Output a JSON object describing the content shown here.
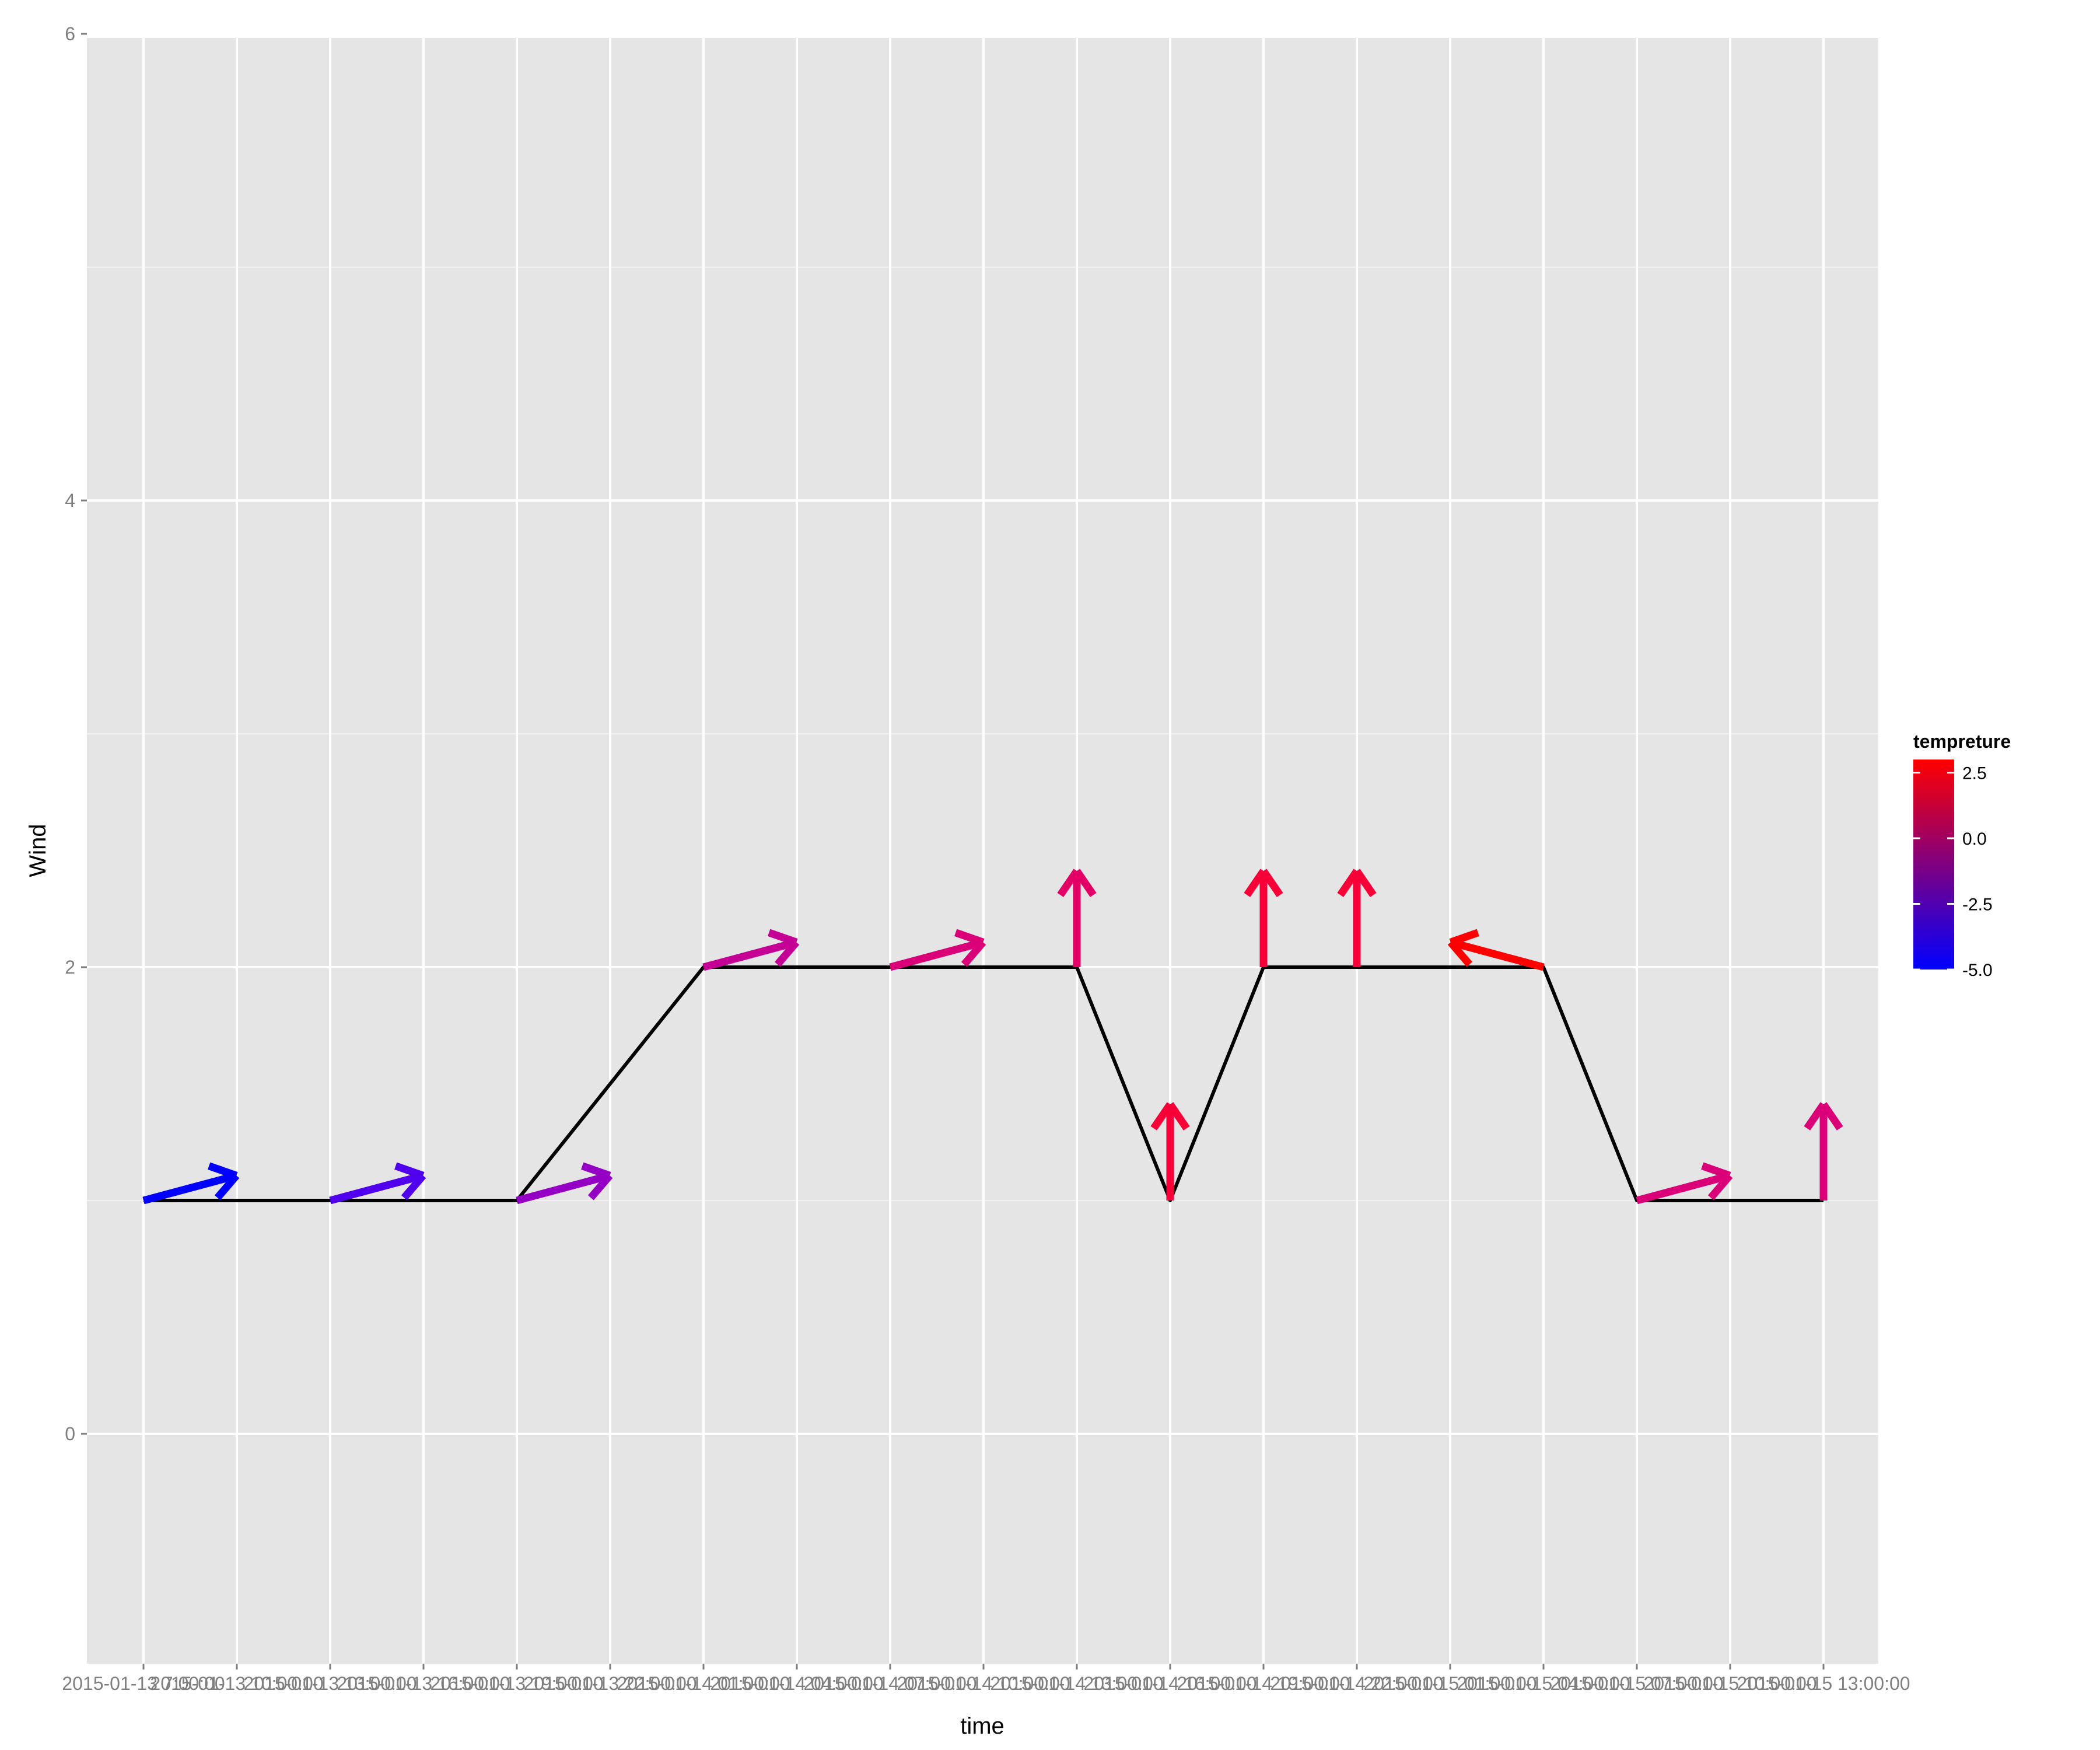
{
  "chart_data": {
    "type": "line",
    "title": "",
    "xlabel": "time",
    "ylabel": "Wind",
    "ylim": [
      -1.25,
      6
    ],
    "y_ticks": [
      "0",
      "2",
      "4",
      "6"
    ],
    "grid": true,
    "legend_placement": "right",
    "x_tick_labels": [
      "2015-01-13 7:00:00",
      "2015-01-13 10:00:00",
      "2015-01-13 13:00:00",
      "2015-01-13 16:00:00",
      "2015-01-13 19:00:00",
      "2015-01-13 22:00:00",
      "2015-01-14 01:00:00",
      "2015-01-14 04:00:00",
      "2015-01-14 07:00:00",
      "2015-01-14 10:00:00",
      "2015-01-14 13:00:00",
      "2015-01-14 16:00:00",
      "2015-01-14 19:00:00",
      "2015-01-14 22:00:00",
      "2015-01-15 01:00:00",
      "2015-01-15 04:00:00",
      "2015-01-15 07:00:00",
      "2015-01-15 10:00:00",
      "2015-01-15 13:00:00"
    ],
    "series": [
      {
        "values": [
          1,
          1,
          1,
          1,
          1,
          1.5,
          2,
          2,
          2,
          2,
          2,
          1,
          2,
          2,
          2,
          2,
          1,
          1,
          1
        ]
      }
    ],
    "wind_arrows": [
      {
        "index": 0,
        "wind": 1,
        "temp": -5.0,
        "direction_deg": 75
      },
      {
        "index": 2,
        "wind": 1,
        "temp": -4.0,
        "direction_deg": 75
      },
      {
        "index": 4,
        "wind": 1,
        "temp": -2.0,
        "direction_deg": 75
      },
      {
        "index": 6,
        "wind": 2,
        "temp": 0.0,
        "direction_deg": 75
      },
      {
        "index": 8,
        "wind": 2,
        "temp": 1.0,
        "direction_deg": 75
      },
      {
        "index": 10,
        "wind": 2,
        "temp": 1.5,
        "direction_deg": 0
      },
      {
        "index": 11,
        "wind": 1,
        "temp": 2.5,
        "direction_deg": 0
      },
      {
        "index": 12,
        "wind": 2,
        "temp": 2.5,
        "direction_deg": 0
      },
      {
        "index": 13,
        "wind": 2,
        "temp": 2.5,
        "direction_deg": 0
      },
      {
        "index": 15,
        "wind": 2,
        "temp": 3.0,
        "direction_deg": 285
      },
      {
        "index": 16,
        "wind": 1,
        "temp": 1.0,
        "direction_deg": 75
      },
      {
        "index": 18,
        "wind": 1,
        "temp": 1.0,
        "direction_deg": 0
      }
    ],
    "legend": {
      "title": "tempreture",
      "labels": [
        "2.5",
        "0.0",
        "-2.5",
        "-5.0"
      ],
      "values": [
        2.5,
        0.0,
        -2.5,
        -5.0
      ],
      "range": [
        -5.0,
        3.0
      ],
      "color_low": "#0000ff",
      "color_high": "#ff0000"
    },
    "colors": {
      "panel": "#e5e5e5",
      "grid_major": "#ffffff",
      "grid_minor": "#f2f2f2",
      "line": "#000000"
    }
  }
}
